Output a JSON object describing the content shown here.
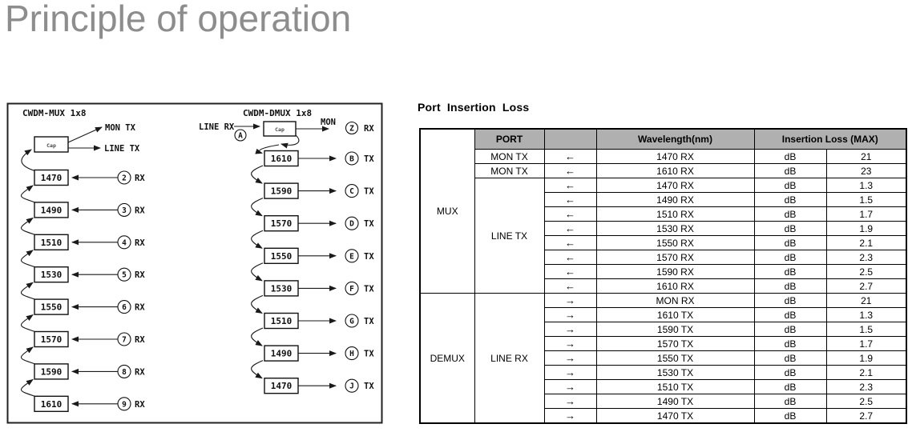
{
  "page": {
    "title": "Principle of operation"
  },
  "colors": {
    "title_gray": "#8d8d8d",
    "table_header_gray": "#b0b0b0",
    "line_color": "#1a1a1a"
  },
  "diagram": {
    "mux": {
      "title": "CWDM-MUX 1x8",
      "coupler_label": "Cap",
      "outputs": {
        "mon": "MON TX",
        "line": "LINE TX"
      },
      "channels": [
        {
          "wavelength": "1470",
          "port": "2",
          "dir": "RX"
        },
        {
          "wavelength": "1490",
          "port": "3",
          "dir": "RX"
        },
        {
          "wavelength": "1510",
          "port": "4",
          "dir": "RX"
        },
        {
          "wavelength": "1530",
          "port": "5",
          "dir": "RX"
        },
        {
          "wavelength": "1550",
          "port": "6",
          "dir": "RX"
        },
        {
          "wavelength": "1570",
          "port": "7",
          "dir": "RX"
        },
        {
          "wavelength": "1590",
          "port": "8",
          "dir": "RX"
        },
        {
          "wavelength": "1610",
          "port": "9",
          "dir": "RX"
        }
      ]
    },
    "dmux": {
      "title": "CWDM-DMUX 1x8",
      "coupler_label": "Cap",
      "input": {
        "label": "LINE RX",
        "port": "A"
      },
      "mon": {
        "label": "MON",
        "port": "Z",
        "dir": "RX"
      },
      "channels": [
        {
          "wavelength": "1610",
          "port": "B",
          "dir": "TX"
        },
        {
          "wavelength": "1590",
          "port": "C",
          "dir": "TX"
        },
        {
          "wavelength": "1570",
          "port": "D",
          "dir": "TX"
        },
        {
          "wavelength": "1550",
          "port": "E",
          "dir": "TX"
        },
        {
          "wavelength": "1530",
          "port": "F",
          "dir": "TX"
        },
        {
          "wavelength": "1510",
          "port": "G",
          "dir": "TX"
        },
        {
          "wavelength": "1490",
          "port": "H",
          "dir": "TX"
        },
        {
          "wavelength": "1470",
          "port": "J",
          "dir": "TX"
        }
      ]
    }
  },
  "table": {
    "title": "Port Insertion Loss",
    "headers": {
      "port": "PORT",
      "direction": "",
      "wavelength": "Wavelength(nm)",
      "insertion_loss": "Insertion Loss (MAX)"
    },
    "sections": [
      {
        "group": "MUX",
        "rows": [
          {
            "port": "MON TX",
            "arrow": "←",
            "wavelength": "1470 RX",
            "unit": "dB",
            "value": "21"
          },
          {
            "port": "MON TX",
            "arrow": "←",
            "wavelength": "1610 RX",
            "unit": "dB",
            "value": "23"
          },
          {
            "port": "LINE TX",
            "port_rowspan": 8,
            "arrow": "←",
            "wavelength": "1470 RX",
            "unit": "dB",
            "value": "1.3"
          },
          {
            "arrow": "←",
            "wavelength": "1490 RX",
            "unit": "dB",
            "value": "1.5"
          },
          {
            "arrow": "←",
            "wavelength": "1510 RX",
            "unit": "dB",
            "value": "1.7"
          },
          {
            "arrow": "←",
            "wavelength": "1530 RX",
            "unit": "dB",
            "value": "1.9"
          },
          {
            "arrow": "←",
            "wavelength": "1550 RX",
            "unit": "dB",
            "value": "2.1"
          },
          {
            "arrow": "←",
            "wavelength": "1570 RX",
            "unit": "dB",
            "value": "2.3"
          },
          {
            "arrow": "←",
            "wavelength": "1590 RX",
            "unit": "dB",
            "value": "2.5"
          },
          {
            "arrow": "←",
            "wavelength": "1610 RX",
            "unit": "dB",
            "value": "2.7"
          }
        ]
      },
      {
        "group": "DEMUX",
        "rows": [
          {
            "port": "LINE RX",
            "port_rowspan": 9,
            "arrow": "→",
            "wavelength": "MON RX",
            "unit": "dB",
            "value": "21"
          },
          {
            "arrow": "→",
            "wavelength": "1610 TX",
            "unit": "dB",
            "value": "1.3"
          },
          {
            "arrow": "→",
            "wavelength": "1590 TX",
            "unit": "dB",
            "value": "1.5"
          },
          {
            "arrow": "→",
            "wavelength": "1570 TX",
            "unit": "dB",
            "value": "1.7"
          },
          {
            "arrow": "→",
            "wavelength": "1550 TX",
            "unit": "dB",
            "value": "1.9"
          },
          {
            "arrow": "→",
            "wavelength": "1530 TX",
            "unit": "dB",
            "value": "2.1"
          },
          {
            "arrow": "→",
            "wavelength": "1510 TX",
            "unit": "dB",
            "value": "2.3"
          },
          {
            "arrow": "→",
            "wavelength": "1490 TX",
            "unit": "dB",
            "value": "2.5"
          },
          {
            "arrow": "→",
            "wavelength": "1470 TX",
            "unit": "dB",
            "value": "2.7"
          }
        ]
      }
    ]
  }
}
